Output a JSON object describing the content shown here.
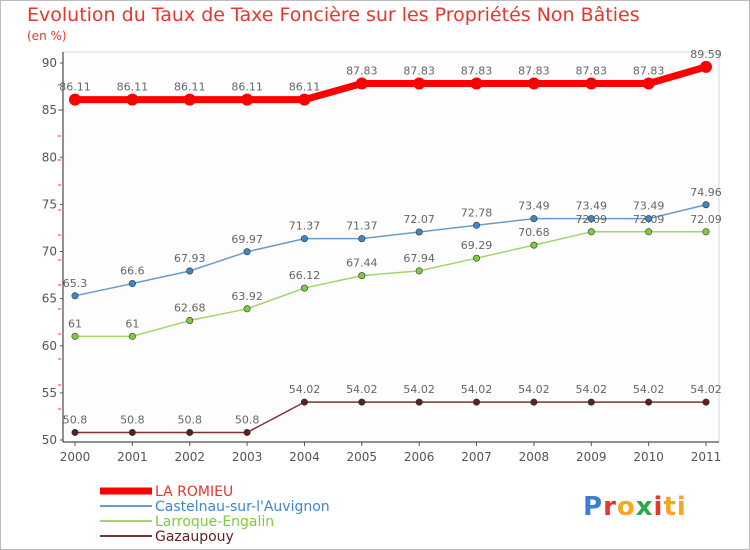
{
  "title": "Evolution du Taux de Taxe Foncière sur les Propriétés Non Bâties",
  "unit_label": "(en %)",
  "logo": {
    "text": "Proxiti"
  },
  "chart_data": {
    "type": "line",
    "title": "Evolution du Taux de Taxe Foncière sur les Propriétés Non Bâties",
    "ylabel": "(en %)",
    "xlabel": "",
    "x": [
      "2000",
      "2001",
      "2002",
      "2003",
      "2004",
      "2005",
      "2006",
      "2007",
      "2008",
      "2009",
      "2010",
      "2011"
    ],
    "ylim": [
      50,
      90
    ],
    "yticks": [
      50,
      55,
      60,
      65,
      70,
      75,
      80,
      85,
      90
    ],
    "grid": false,
    "legend_position": "bottom-left",
    "series": [
      {
        "name": "LA ROMIEU",
        "color": "#ff0000",
        "emphasis": true,
        "values": [
          86.11,
          86.11,
          86.11,
          86.11,
          86.11,
          87.83,
          87.83,
          87.83,
          87.83,
          87.83,
          87.83,
          89.59
        ],
        "labels": [
          "86.11",
          "86.11",
          "86.11",
          "86.11",
          "86.11",
          "87.83",
          "87.83",
          "87.83",
          "87.83",
          "87.83",
          "87.83",
          "89.59"
        ]
      },
      {
        "name": "Castelnau-sur-l'Auvignon",
        "color": "#6b9cc9",
        "marker": "#3f86cd",
        "values": [
          65.3,
          66.6,
          67.93,
          69.97,
          71.37,
          71.37,
          72.07,
          72.78,
          73.49,
          73.49,
          73.49,
          74.96
        ],
        "labels": [
          "65.3",
          "66.6",
          "67.93",
          "69.97",
          "71.37",
          "71.37",
          "72.07",
          "72.78",
          "73.49",
          "73.49",
          "73.49",
          "74.96"
        ]
      },
      {
        "name": "Larroque-Engalin",
        "color": "#a5d46b",
        "marker": "#7ccd3a",
        "values": [
          61,
          61,
          62.68,
          63.92,
          66.12,
          67.44,
          67.94,
          69.29,
          70.68,
          72.09,
          72.09,
          72.09
        ],
        "labels": [
          "61",
          "61",
          "62.68",
          "63.92",
          "66.12",
          "67.44",
          "67.94",
          "69.29",
          "70.68",
          "72.09",
          "72.09",
          "72.09"
        ]
      },
      {
        "name": "Gazaupouy",
        "color": "#7a3434",
        "marker": "#5e1f1f",
        "values": [
          50.8,
          50.8,
          50.8,
          50.8,
          54.02,
          54.02,
          54.02,
          54.02,
          54.02,
          54.02,
          54.02,
          54.02
        ],
        "labels": [
          "50.8",
          "50.8",
          "50.8",
          "50.8",
          "54.02",
          "54.02",
          "54.02",
          "54.02",
          "54.02",
          "54.02",
          "54.02",
          "54.02"
        ]
      }
    ]
  }
}
